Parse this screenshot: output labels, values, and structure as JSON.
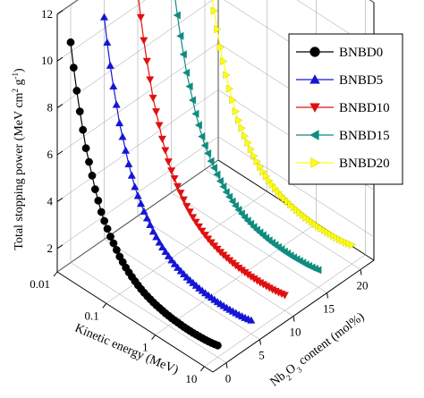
{
  "chart_data": {
    "type": "scatter",
    "projection": "3d",
    "title": "",
    "axes": {
      "y": {
        "label": "Total stopping power (MeV cm² g⁻¹)",
        "ticks": [
          2,
          4,
          6,
          8,
          10,
          12
        ],
        "range": [
          1,
          12
        ]
      },
      "x": {
        "label": "Kinetic energy (MeV)",
        "scale": "log",
        "ticks": [
          0.01,
          0.1,
          1,
          10
        ],
        "tick_labels": [
          "0.01",
          "0.1",
          "1",
          "10"
        ],
        "range": [
          0.01,
          15
        ]
      },
      "z": {
        "label": "Nb2O3 content (mol%)",
        "ticks": [
          0,
          5,
          10,
          15,
          20
        ],
        "tick_labels": [
          "0",
          "5",
          "10",
          "15",
          "20"
        ],
        "range": [
          -2,
          22
        ]
      }
    },
    "grid": true,
    "legend_position": "top-right",
    "series": [
      {
        "name": "BNBD0",
        "nb2o3_mol_percent": 0,
        "color": "#000000",
        "marker": "circle"
      },
      {
        "name": "BNBD5",
        "nb2o3_mol_percent": 5,
        "color": "#1515d6",
        "marker": "triangle-up"
      },
      {
        "name": "BNBD10",
        "nb2o3_mol_percent": 10,
        "color": "#e01010",
        "marker": "triangle-down"
      },
      {
        "name": "BNBD15",
        "nb2o3_mol_percent": 15,
        "color": "#0f8c80",
        "marker": "triangle-left"
      },
      {
        "name": "BNBD20",
        "nb2o3_mol_percent": 20,
        "color": "#ffff10",
        "marker": "triangle-right"
      }
    ],
    "energy_MeV": [
      0.01,
      0.0115,
      0.0133,
      0.0154,
      0.0178,
      0.0205,
      0.0237,
      0.0274,
      0.0316,
      0.0365,
      0.0422,
      0.0487,
      0.0562,
      0.0649,
      0.075,
      0.0866,
      0.1,
      0.1155,
      0.1334,
      0.154,
      0.1778,
      0.2054,
      0.2371,
      0.2738,
      0.3162,
      0.3652,
      0.4217,
      0.487,
      0.5623,
      0.6494,
      0.7499,
      0.866,
      1,
      1.155,
      1.334,
      1.54,
      1.778,
      2.054,
      2.371,
      2.738,
      3.162,
      3.652,
      4.217,
      4.87,
      5.623,
      6.494,
      7.499,
      8.66,
      10
    ],
    "stopping_power_MeV_cm2_g": [
      10.4,
      9.4,
      8.5,
      7.7,
      7.0,
      6.3,
      5.8,
      5.3,
      4.8,
      4.4,
      4.0,
      3.7,
      3.45,
      3.2,
      3.0,
      2.8,
      2.6,
      2.45,
      2.3,
      2.18,
      2.07,
      1.97,
      1.88,
      1.8,
      1.73,
      1.67,
      1.62,
      1.57,
      1.53,
      1.5,
      1.47,
      1.44,
      1.42,
      1.4,
      1.39,
      1.38,
      1.37,
      1.36,
      1.36,
      1.36,
      1.36,
      1.37,
      1.38,
      1.39,
      1.4,
      1.42,
      1.44,
      1.47,
      1.5
    ],
    "series_offsets_note": ""
  },
  "legend": {
    "items": [
      "BNBD0",
      "BNBD5",
      "BNBD10",
      "BNBD15",
      "BNBD20"
    ]
  },
  "labels": {
    "ylabel_main": "Total stopping power (MeV cm",
    "ylabel_sup1": "2",
    "ylabel_mid": " g",
    "ylabel_sup2": "-1",
    "ylabel_end": ")",
    "xlabel": "Kinetic energy (MeV)",
    "zlabel_a": "Nb",
    "zlabel_sub1": "2",
    "zlabel_b": "O",
    "zlabel_sub2": "3",
    "zlabel_c": " content (mol%)"
  }
}
